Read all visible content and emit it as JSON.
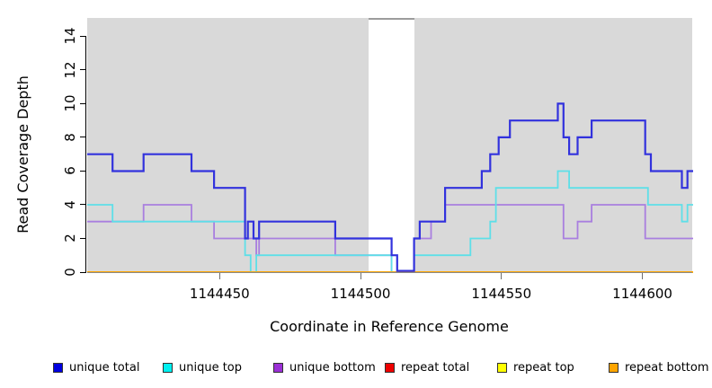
{
  "chart_data": {
    "type": "step-line",
    "title": "",
    "x_axis": {
      "label": "Coordinate in Reference Genome",
      "ticks": [
        1144450,
        1144500,
        1144550,
        1144600
      ],
      "range": [
        1144403,
        1144618
      ],
      "grid": false
    },
    "y_axis": {
      "label": "Read Coverage Depth",
      "ticks": [
        0,
        2,
        4,
        6,
        8,
        10,
        12,
        14
      ],
      "range": [
        0,
        15.1
      ],
      "grid": false
    },
    "plot_background_color": "#d9d9d9",
    "masked_region": {
      "start": 1144503,
      "end": 1144519,
      "color": "#ffffff",
      "topline_color": "#9c9c9c"
    },
    "series": [
      {
        "name": "repeat total",
        "color": "#dd0000",
        "width": 1.6,
        "steps": [
          [
            1144403,
            0
          ]
        ]
      },
      {
        "name": "repeat top",
        "color": "#ffff00",
        "width": 1.6,
        "steps": [
          [
            1144403,
            0
          ]
        ]
      },
      {
        "name": "unique bottom",
        "color": "#a97fdf",
        "width": 1.8,
        "steps": [
          [
            1144403,
            3
          ],
          [
            1144423,
            4
          ],
          [
            1144440,
            3
          ],
          [
            1144448,
            2
          ],
          [
            1144463,
            1
          ],
          [
            1144464,
            2
          ],
          [
            1144491,
            1
          ],
          [
            1144511,
            0
          ],
          [
            1144519,
            2
          ],
          [
            1144525,
            3
          ],
          [
            1144530,
            4
          ],
          [
            1144572,
            2
          ],
          [
            1144577,
            3
          ],
          [
            1144582,
            4
          ],
          [
            1144601,
            2
          ]
        ]
      },
      {
        "name": "unique top",
        "color": "#5edfe8",
        "width": 1.8,
        "steps": [
          [
            1144403,
            4
          ],
          [
            1144412,
            3
          ],
          [
            1144459,
            1
          ],
          [
            1144461,
            0
          ],
          [
            1144463,
            1
          ],
          [
            1144511,
            0
          ],
          [
            1144519,
            1
          ],
          [
            1144539,
            2
          ],
          [
            1144546,
            3
          ],
          [
            1144548,
            5
          ],
          [
            1144570,
            6
          ],
          [
            1144574,
            5
          ],
          [
            1144602,
            4
          ],
          [
            1144614,
            3
          ],
          [
            1144616,
            4
          ]
        ]
      },
      {
        "name": "repeat bottom",
        "color": "#ffa500",
        "width": 1.8,
        "steps": [
          [
            1144403,
            0
          ]
        ]
      },
      {
        "name": "unique total",
        "color": "#3232dd",
        "width": 2.2,
        "steps": [
          [
            1144403,
            7
          ],
          [
            1144412,
            6
          ],
          [
            1144423,
            7
          ],
          [
            1144440,
            6
          ],
          [
            1144448,
            5
          ],
          [
            1144459,
            2
          ],
          [
            1144460,
            3
          ],
          [
            1144462,
            2
          ],
          [
            1144464,
            3
          ],
          [
            1144491,
            2
          ],
          [
            1144511,
            1
          ],
          [
            1144513,
            0
          ],
          [
            1144519,
            2
          ],
          [
            1144521,
            3
          ],
          [
            1144530,
            5
          ],
          [
            1144543,
            6
          ],
          [
            1144546,
            7
          ],
          [
            1144549,
            8
          ],
          [
            1144553,
            9
          ],
          [
            1144570,
            10
          ],
          [
            1144572,
            8
          ],
          [
            1144574,
            7
          ],
          [
            1144577,
            8
          ],
          [
            1144582,
            9
          ],
          [
            1144601,
            7
          ],
          [
            1144603,
            6
          ],
          [
            1144614,
            5
          ],
          [
            1144616,
            6
          ]
        ]
      }
    ],
    "legend": {
      "position": "bottom",
      "items": [
        {
          "label": "unique total",
          "color": "#0000e0"
        },
        {
          "label": "unique top",
          "color": "#00f0f0"
        },
        {
          "label": "unique bottom",
          "color": "#9b30d6"
        },
        {
          "label": "repeat total",
          "color": "#ee0000"
        },
        {
          "label": "repeat top",
          "color": "#ffff00"
        },
        {
          "label": "repeat bottom",
          "color": "#ffa500"
        }
      ]
    }
  }
}
